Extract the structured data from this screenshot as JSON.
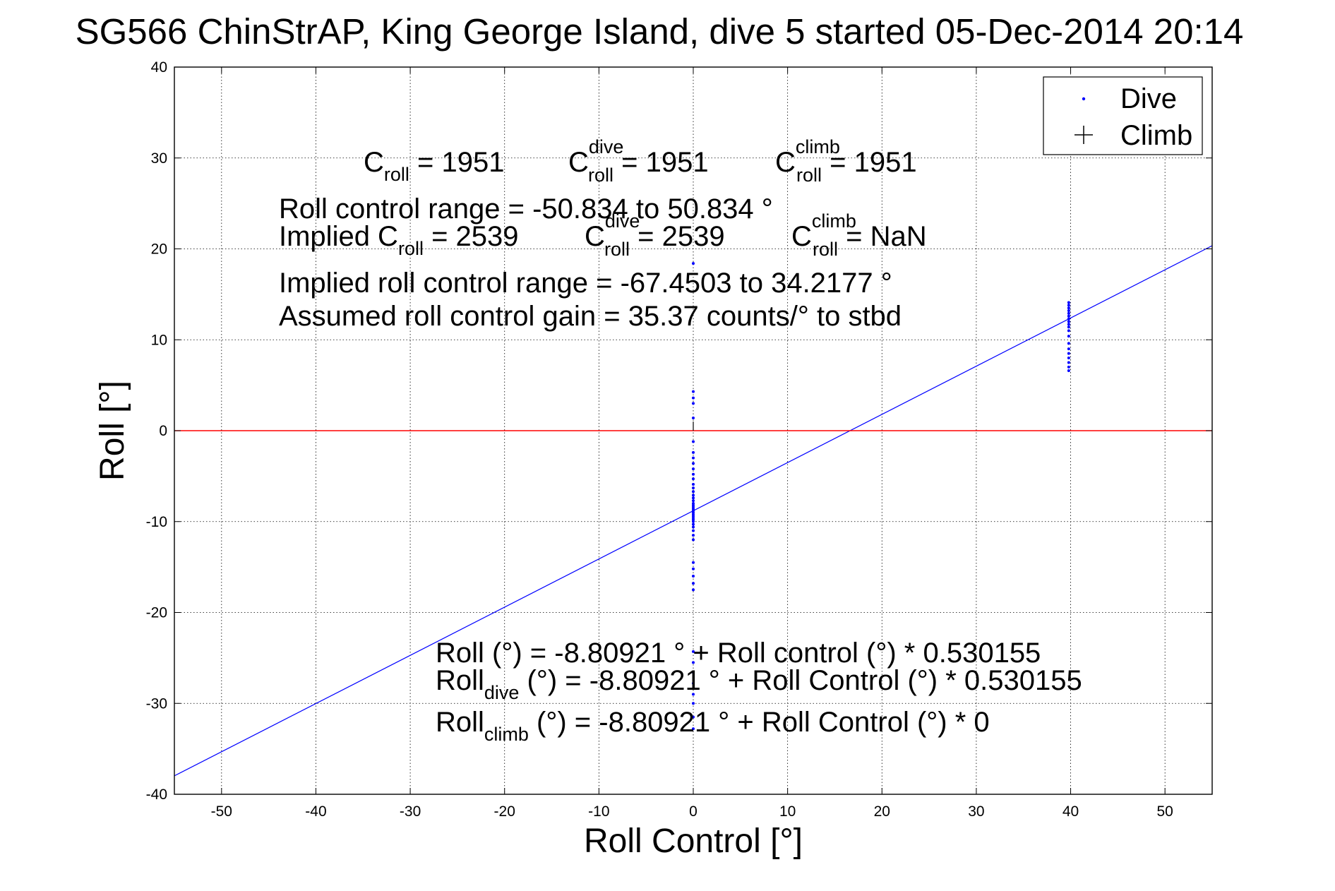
{
  "chart_data": {
    "type": "scatter",
    "title": "SG566 ChinStrAP, King George Island, dive 5 started 05-Dec-2014 20:14",
    "xlabel": "Roll Control [°]",
    "ylabel": "Roll [°]",
    "xlim": [
      -55,
      55
    ],
    "ylim": [
      -40,
      40
    ],
    "xticks": [
      -50,
      -40,
      -30,
      -20,
      -10,
      0,
      10,
      20,
      30,
      40,
      50
    ],
    "yticks": [
      -40,
      -30,
      -20,
      -10,
      0,
      10,
      20,
      30,
      40
    ],
    "grid": true,
    "legend": {
      "placement": "top-right",
      "entries": [
        "Dive",
        "Climb"
      ]
    },
    "colors": {
      "dive": "#0000ff",
      "climb": "#000000",
      "fit": "#0000ff",
      "zero": "#ff0000"
    },
    "series": [
      {
        "name": "Dive",
        "marker": "dot",
        "points": [
          [
            0,
            18.4
          ],
          [
            0,
            4.3
          ],
          [
            0,
            3.6
          ],
          [
            0,
            3.0
          ],
          [
            0,
            1.4
          ],
          [
            0,
            -1.2
          ],
          [
            0,
            -2.4
          ],
          [
            0,
            -3.0
          ],
          [
            0,
            -3.6
          ],
          [
            0,
            -4.2
          ],
          [
            0,
            -4.8
          ],
          [
            0,
            -5.3
          ],
          [
            0,
            -5.9
          ],
          [
            0,
            -6.3
          ],
          [
            0,
            -6.7
          ],
          [
            0,
            -7.1
          ],
          [
            0,
            -7.4
          ],
          [
            0,
            -7.7
          ],
          [
            0,
            -8.0
          ],
          [
            0,
            -8.2
          ],
          [
            0,
            -8.4
          ],
          [
            0,
            -8.6
          ],
          [
            0,
            -8.8
          ],
          [
            0,
            -9.0
          ],
          [
            0,
            -9.2
          ],
          [
            0,
            -9.4
          ],
          [
            0,
            -9.6
          ],
          [
            0,
            -9.8
          ],
          [
            0,
            -10.0
          ],
          [
            0,
            -10.3
          ],
          [
            0,
            -10.6
          ],
          [
            0,
            -11.0
          ],
          [
            0,
            -11.5
          ],
          [
            0,
            -12.0
          ],
          [
            0,
            -14.5
          ],
          [
            0,
            -15.2
          ],
          [
            0,
            -16.0
          ],
          [
            0,
            -16.8
          ],
          [
            0,
            -17.5
          ],
          [
            0,
            -24.3
          ],
          [
            0,
            -25.5
          ],
          [
            0,
            -26.6
          ],
          [
            0,
            -27.8
          ],
          [
            0,
            -29.0
          ],
          [
            0,
            -30.0
          ],
          [
            0,
            -31.5
          ],
          [
            0,
            -32.8
          ],
          [
            39.8,
            14.1
          ],
          [
            39.8,
            13.8
          ],
          [
            39.8,
            13.5
          ],
          [
            39.8,
            13.2
          ],
          [
            39.8,
            12.9
          ],
          [
            39.8,
            12.6
          ],
          [
            39.8,
            12.3
          ],
          [
            39.8,
            12.0
          ],
          [
            39.8,
            11.7
          ],
          [
            39.8,
            11.4
          ],
          [
            39.8,
            11.0
          ],
          [
            39.8,
            10.4
          ],
          [
            39.8,
            9.6
          ],
          [
            39.8,
            9.0
          ],
          [
            39.8,
            8.5
          ],
          [
            39.8,
            8.0
          ],
          [
            39.8,
            7.5
          ],
          [
            39.8,
            7.0
          ],
          [
            39.8,
            6.6
          ]
        ]
      },
      {
        "name": "Climb",
        "marker": "plus",
        "points": []
      }
    ],
    "lines": [
      {
        "kind": "fit",
        "points": [
          [
            -55,
            -37.97
          ],
          [
            55,
            20.35
          ]
        ]
      },
      {
        "kind": "zero",
        "points": [
          [
            -55,
            0
          ],
          [
            55,
            0
          ]
        ]
      },
      {
        "kind": "segment",
        "points": [
          [
            0,
            0
          ],
          [
            0,
            1
          ]
        ]
      }
    ],
    "annotations": {
      "croll_row": {
        "c1": {
          "base": "C",
          "sub": "roll",
          "rest": " = 1951"
        },
        "c2": {
          "base": "C",
          "sup": "dive",
          "sub": "roll",
          "rest": " = 1951"
        },
        "c3": {
          "base": "C",
          "sup": "climb",
          "sub": "roll",
          "rest": " = 1951"
        }
      },
      "range_line": "Roll control range = -50.834 to 50.834 °",
      "implied_row": {
        "i1": {
          "base": "Implied C",
          "sub": "roll",
          "rest": " = 2539"
        },
        "i2": {
          "base": "C",
          "sup": "dive",
          "sub": "roll",
          "rest": " = 2539"
        },
        "i3": {
          "base": "C",
          "sup": "climb",
          "sub": "roll",
          "rest": " =  NaN"
        }
      },
      "implied_range_line": "Implied roll control range = -67.4503 to 34.2177 °",
      "gain_line": "Assumed roll control gain = 35.37 counts/° to stbd",
      "fit_line": "Roll (°) = -8.80921 ° + Roll control (°) * 0.530155",
      "fit_dive": {
        "base": "Roll",
        "sub": "dive",
        "rest": " (°) = -8.80921 ° + Roll Control (°) * 0.530155"
      },
      "fit_climb": {
        "base": "Roll",
        "sub": "climb",
        "rest": " (°) = -8.80921 ° + Roll Control (°) * 0"
      }
    }
  }
}
